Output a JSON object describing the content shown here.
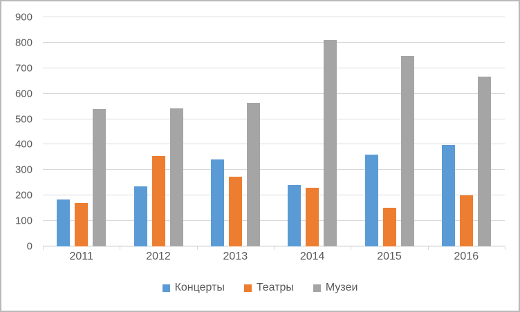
{
  "chart_data": {
    "type": "bar",
    "title": "",
    "categories": [
      "2011",
      "2012",
      "2013",
      "2014",
      "2015",
      "2016"
    ],
    "series": [
      {
        "name": "Концерты",
        "slug": "concerts",
        "color": "#5B9BD5",
        "values": [
          185,
          237,
          341,
          240,
          360,
          399
        ]
      },
      {
        "name": "Театры",
        "slug": "theaters",
        "color": "#ED7D31",
        "values": [
          170,
          355,
          273,
          230,
          152,
          201
        ]
      },
      {
        "name": "Музеи",
        "slug": "museums",
        "color": "#A5A5A5",
        "values": [
          540,
          543,
          564,
          810,
          747,
          666
        ]
      }
    ],
    "xlabel": "",
    "ylabel": "",
    "ylim": [
      0,
      900
    ],
    "ytick_step": 100,
    "ytick_labels": [
      "0",
      "100",
      "200",
      "300",
      "400",
      "500",
      "600",
      "700",
      "800",
      "900"
    ],
    "grid": true,
    "legend_position": "bottom"
  },
  "colors": {
    "background": "#FFFFFF",
    "gridline": "#D9D9D9",
    "axis_line": "#BFBFBF",
    "tick_mark": "#D9D9D9",
    "tick_text": "#595959",
    "frame_border": "#B9B9B9"
  }
}
